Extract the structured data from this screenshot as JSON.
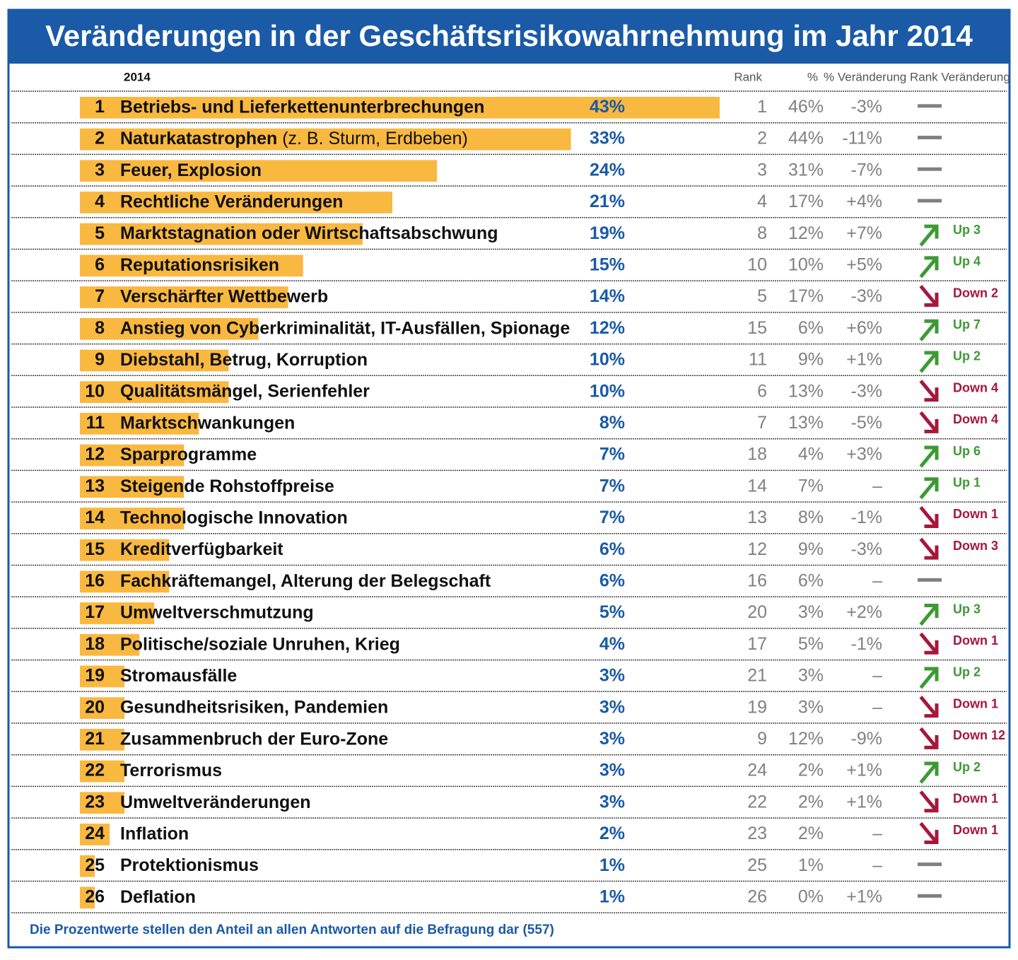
{
  "chart_data": {
    "type": "bar",
    "title": "Veränderungen in der Geschäftsrisikowahrnehmung im Jahr 2014",
    "header": {
      "year": "2014",
      "rank": "Rank",
      "pct": "%",
      "pct_change": "% Veränderung",
      "rank_change": "Rank Veränderung"
    },
    "color": "#f9b840",
    "up_color": "#3d9a33",
    "down_color": "#a6173c",
    "dash_color": "#808080",
    "rows": [
      {
        "number": 1,
        "name": "Betriebs- und Lieferkettenunterbrechungen",
        "value": 43,
        "value_label": "43%",
        "rank": 1,
        "prev": "46%",
        "change": "-3%",
        "rank_change": null
      },
      {
        "number": 2,
        "name": "Naturkatastrophen",
        "note": "(z. B. Sturm, Erdbeben)",
        "value": 33,
        "value_label": "33%",
        "rank": 2,
        "prev": "44%",
        "change": "-11%",
        "rank_change": null
      },
      {
        "number": 3,
        "name": "Feuer, Explosion",
        "value": 24,
        "value_label": "24%",
        "rank": 3,
        "prev": "31%",
        "change": "-7%",
        "rank_change": null
      },
      {
        "number": 4,
        "name": "Rechtliche Veränderungen",
        "value": 21,
        "value_label": "21%",
        "rank": 4,
        "prev": "17%",
        "change": "+4%",
        "rank_change": null
      },
      {
        "number": 5,
        "name": "Marktstagnation oder Wirtschaftsabschwung",
        "value": 19,
        "value_label": "19%",
        "rank": 8,
        "prev": "12%",
        "change": "+7%",
        "rank_change": "Up 3"
      },
      {
        "number": 6,
        "name": "Reputationsrisiken",
        "value": 15,
        "value_label": "15%",
        "rank": 10,
        "prev": "10%",
        "change": "+5%",
        "rank_change": "Up 4"
      },
      {
        "number": 7,
        "name": "Verschärfter Wettbewerb",
        "value": 14,
        "value_label": "14%",
        "rank": 5,
        "prev": "17%",
        "change": "-3%",
        "rank_change": "Down 2"
      },
      {
        "number": 8,
        "name": "Anstieg von Cyberkriminalität, IT-Ausfällen, Spionage",
        "value": 12,
        "value_label": "12%",
        "rank": 15,
        "prev": "6%",
        "change": "+6%",
        "rank_change": "Up 7"
      },
      {
        "number": 9,
        "name": "Diebstahl, Betrug, Korruption",
        "value": 10,
        "value_label": "10%",
        "rank": 11,
        "prev": "9%",
        "change": "+1%",
        "rank_change": "Up 2"
      },
      {
        "number": 10,
        "name": "Qualitätsmängel, Serienfehler",
        "value": 10,
        "value_label": "10%",
        "rank": 6,
        "prev": "13%",
        "change": "-3%",
        "rank_change": "Down 4"
      },
      {
        "number": 11,
        "name": "Marktschwankungen",
        "value": 8,
        "value_label": "8%",
        "rank": 7,
        "prev": "13%",
        "change": "-5%",
        "rank_change": "Down 4"
      },
      {
        "number": 12,
        "name": "Sparprogramme",
        "value": 7,
        "value_label": "7%",
        "rank": 18,
        "prev": "4%",
        "change": "+3%",
        "rank_change": "Up 6"
      },
      {
        "number": 13,
        "name": "Steigende Rohstoffpreise",
        "value": 7,
        "value_label": "7%",
        "rank": 14,
        "prev": "7%",
        "change": "–",
        "rank_change": "Up 1"
      },
      {
        "number": 14,
        "name": "Technologische Innovation",
        "value": 7,
        "value_label": "7%",
        "rank": 13,
        "prev": "8%",
        "change": "-1%",
        "rank_change": "Down 1"
      },
      {
        "number": 15,
        "name": "Kreditverfügbarkeit",
        "value": 6,
        "value_label": "6%",
        "rank": 12,
        "prev": "9%",
        "change": "-3%",
        "rank_change": "Down 3"
      },
      {
        "number": 16,
        "name": "Fachkräftemangel, Alterung der Belegschaft",
        "value": 6,
        "value_label": "6%",
        "rank": 16,
        "prev": "6%",
        "change": "–",
        "rank_change": null
      },
      {
        "number": 17,
        "name": "Umweltverschmutzung",
        "value": 5,
        "value_label": "5%",
        "rank": 20,
        "prev": "3%",
        "change": "+2%",
        "rank_change": "Up 3"
      },
      {
        "number": 18,
        "name": "Politische/soziale Unruhen, Krieg",
        "value": 4,
        "value_label": "4%",
        "rank": 17,
        "prev": "5%",
        "change": "-1%",
        "rank_change": "Down 1"
      },
      {
        "number": 19,
        "name": "Stromausfälle",
        "value": 3,
        "value_label": "3%",
        "rank": 21,
        "prev": "3%",
        "change": "–",
        "rank_change": "Up 2"
      },
      {
        "number": 20,
        "name": "Gesundheitsrisiken, Pandemien",
        "value": 3,
        "value_label": "3%",
        "rank": 19,
        "prev": "3%",
        "change": "–",
        "rank_change": "Down 1"
      },
      {
        "number": 21,
        "name": "Zusammenbruch der Euro-Zone",
        "value": 3,
        "value_label": "3%",
        "rank": 9,
        "prev": "12%",
        "change": "-9%",
        "rank_change": "Down 12"
      },
      {
        "number": 22,
        "name": "Terrorismus",
        "value": 3,
        "value_label": "3%",
        "rank": 24,
        "prev": "2%",
        "change": "+1%",
        "rank_change": "Up 2"
      },
      {
        "number": 23,
        "name": "Umweltveränderungen",
        "value": 3,
        "value_label": "3%",
        "rank": 22,
        "prev": "2%",
        "change": "+1%",
        "rank_change": "Down 1"
      },
      {
        "number": 24,
        "name": "Inflation",
        "value": 2,
        "value_label": "2%",
        "rank": 23,
        "prev": "2%",
        "change": "–",
        "rank_change": "Down 1"
      },
      {
        "number": 25,
        "name": "Protektionismus",
        "value": 1,
        "value_label": "1%",
        "rank": 25,
        "prev": "1%",
        "change": "–",
        "rank_change": null
      },
      {
        "number": 26,
        "name": "Deflation",
        "value": 1,
        "value_label": "1%",
        "rank": 26,
        "prev": "0%",
        "change": "+1%",
        "rank_change": null
      }
    ],
    "footnote": "Die Prozentwerte stellen den Anteil an allen Antworten auf die Befragung dar (557)"
  }
}
